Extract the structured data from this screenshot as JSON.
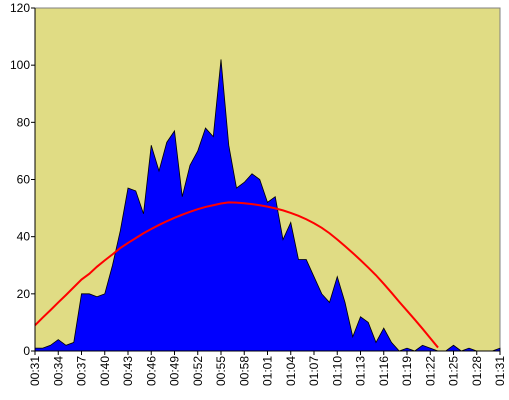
{
  "chart_data": {
    "type": "area",
    "categories": [
      "00:31",
      null,
      null,
      "00:34",
      null,
      null,
      "00:37",
      null,
      null,
      "00:40",
      null,
      null,
      "00:43",
      null,
      null,
      "00:46",
      null,
      null,
      "00:49",
      null,
      null,
      "00:52",
      null,
      null,
      "00:55",
      null,
      null,
      "00:58",
      null,
      null,
      "01:01",
      null,
      null,
      "01:04",
      null,
      null,
      "01:07",
      null,
      null,
      "01:10",
      null,
      null,
      "01:13",
      null,
      null,
      "01:16",
      null,
      null,
      "01:19",
      null,
      null,
      "01:22",
      null,
      null,
      "01:25",
      null,
      null,
      "01:28",
      null,
      null,
      "01:31"
    ],
    "series": [
      {
        "color": "#0000ff",
        "values": [
          1,
          1,
          2,
          4,
          2,
          3,
          20,
          20,
          19,
          20,
          30,
          42,
          57,
          56,
          48,
          72,
          63,
          73,
          77,
          54,
          65,
          70,
          78,
          75,
          102,
          72,
          57,
          59,
          62,
          60,
          52,
          54,
          39,
          45,
          32,
          32,
          26,
          20,
          17,
          26,
          17,
          5,
          12,
          10,
          3,
          8,
          3,
          0,
          1,
          0,
          2,
          1,
          0,
          0,
          2,
          0,
          1,
          0,
          0,
          0,
          1
        ]
      },
      {
        "color": "#ff0000",
        "values": [
          9,
          11.7,
          14.3,
          17,
          19.6,
          22.3,
          25,
          27,
          29.5,
          31.7,
          33.8,
          36,
          37.8,
          39.5,
          41.2,
          42.7,
          44.1,
          45.4,
          46.6,
          47.7,
          48.7,
          49.6,
          50.4,
          51,
          51.6,
          52,
          51.9,
          51.7,
          51.4,
          51,
          50.5,
          49.9,
          49.2,
          48.3,
          47.3,
          46.1,
          44.7,
          43.1,
          41.2,
          39,
          36.7,
          34.3,
          31.8,
          29.2,
          26.5,
          23.5,
          20.4,
          17.2,
          14.1,
          11,
          7.8,
          4.5,
          1.2,
          null,
          null,
          null,
          null,
          null,
          null,
          null,
          null
        ]
      }
    ],
    "background": "#e0dc84",
    "ylim": [
      0,
      120
    ],
    "yticks": [
      0,
      20,
      40,
      60,
      80,
      100,
      120
    ]
  }
}
